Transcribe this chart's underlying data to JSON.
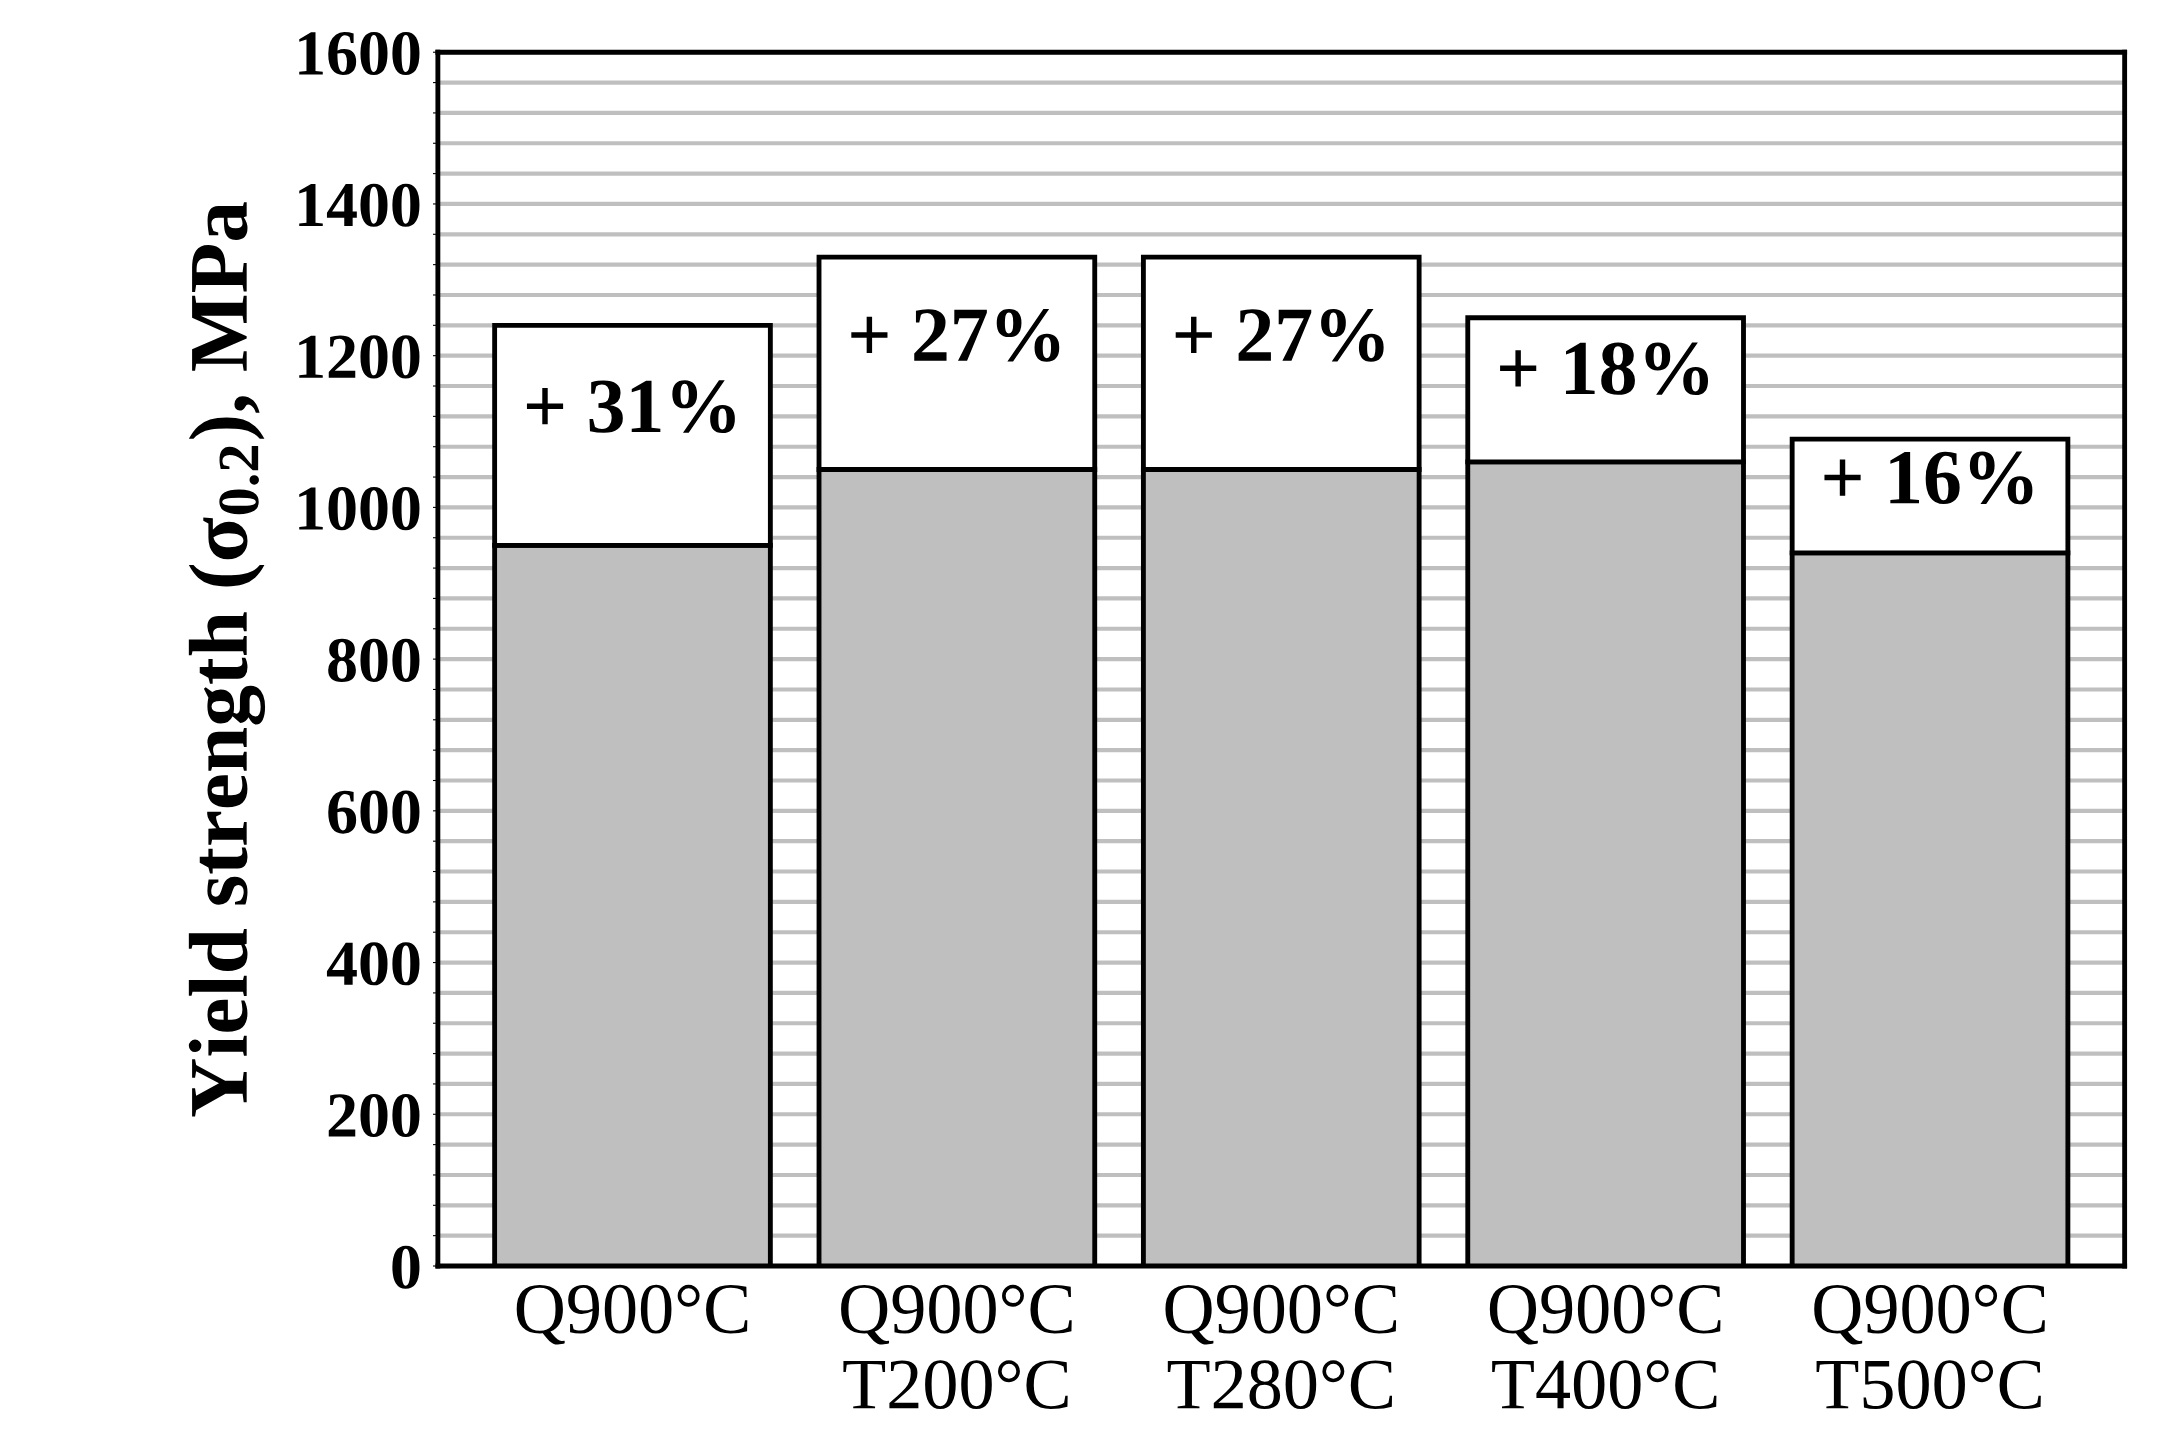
{
  "chart_data": {
    "type": "bar",
    "stacked": true,
    "ylabel": "Yield strength (σ$_{0.2}$), MPa",
    "categories": [
      "Q900°C",
      "Q900°C\nT200°C",
      "Q900°C\nT280°C",
      "Q900°C\nT400°C",
      "Q900°C\nT500°C"
    ],
    "series": [
      {
        "color": "#bfbfbf",
        "values": [
          950,
          1050,
          1050,
          1060,
          940
        ]
      },
      {
        "color": "#ffffff",
        "values": [
          290,
          280,
          280,
          190,
          150
        ]
      }
    ],
    "annotations": [
      {
        "text": "+ 31%",
        "x": "Q900°C",
        "y": 1240
      },
      {
        "text": "+ 27%",
        "x": "Q900°C\nT200°C",
        "y": 1330
      },
      {
        "text": "+ 27%",
        "x": "Q900°C\nT280°C",
        "y": 1330
      },
      {
        "text": "+ 18%",
        "x": "Q900°C\nT400°C",
        "y": 1250
      },
      {
        "text": "+ 16%",
        "x": "Q900°C\nT500°C",
        "y": 1090
      }
    ],
    "ylim": [
      0,
      1600
    ],
    "yticks": [
      0,
      {
        "value": 40,
        "label": null
      },
      {
        "value": 80,
        "label": null
      },
      {
        "value": 120,
        "label": null
      },
      {
        "value": 160,
        "label": null
      },
      200,
      {
        "value": 240,
        "label": null
      },
      {
        "value": 280,
        "label": null
      },
      {
        "value": 320,
        "label": null
      },
      {
        "value": 360,
        "label": null
      },
      400,
      {
        "value": 440,
        "label": null
      },
      {
        "value": 480,
        "label": null
      },
      {
        "value": 520,
        "label": null
      },
      {
        "value": 560,
        "label": null
      },
      600,
      {
        "value": 640,
        "label": null
      },
      {
        "value": 680,
        "label": null
      },
      {
        "value": 720,
        "label": null
      },
      {
        "value": 760,
        "label": null
      },
      800,
      {
        "value": 840,
        "label": null
      },
      {
        "value": 880,
        "label": null
      },
      {
        "value": 920,
        "label": null
      },
      {
        "value": 960,
        "label": null
      },
      1000,
      {
        "value": 1040,
        "label": null
      },
      {
        "value": 1080,
        "label": null
      },
      {
        "value": 1120,
        "label": null
      },
      {
        "value": 1160,
        "label": null
      },
      1200,
      {
        "value": 1240,
        "label": null
      },
      {
        "value": 1280,
        "label": null
      },
      {
        "value": 1320,
        "label": null
      },
      {
        "value": 1360,
        "label": null
      },
      1400,
      {
        "value": 1440,
        "label": null
      },
      {
        "value": 1480,
        "label": null
      },
      {
        "value": 1520,
        "label": null
      },
      {
        "value": 1560,
        "label": null
      },
      1600
    ],
    "grid": "y"
  }
}
